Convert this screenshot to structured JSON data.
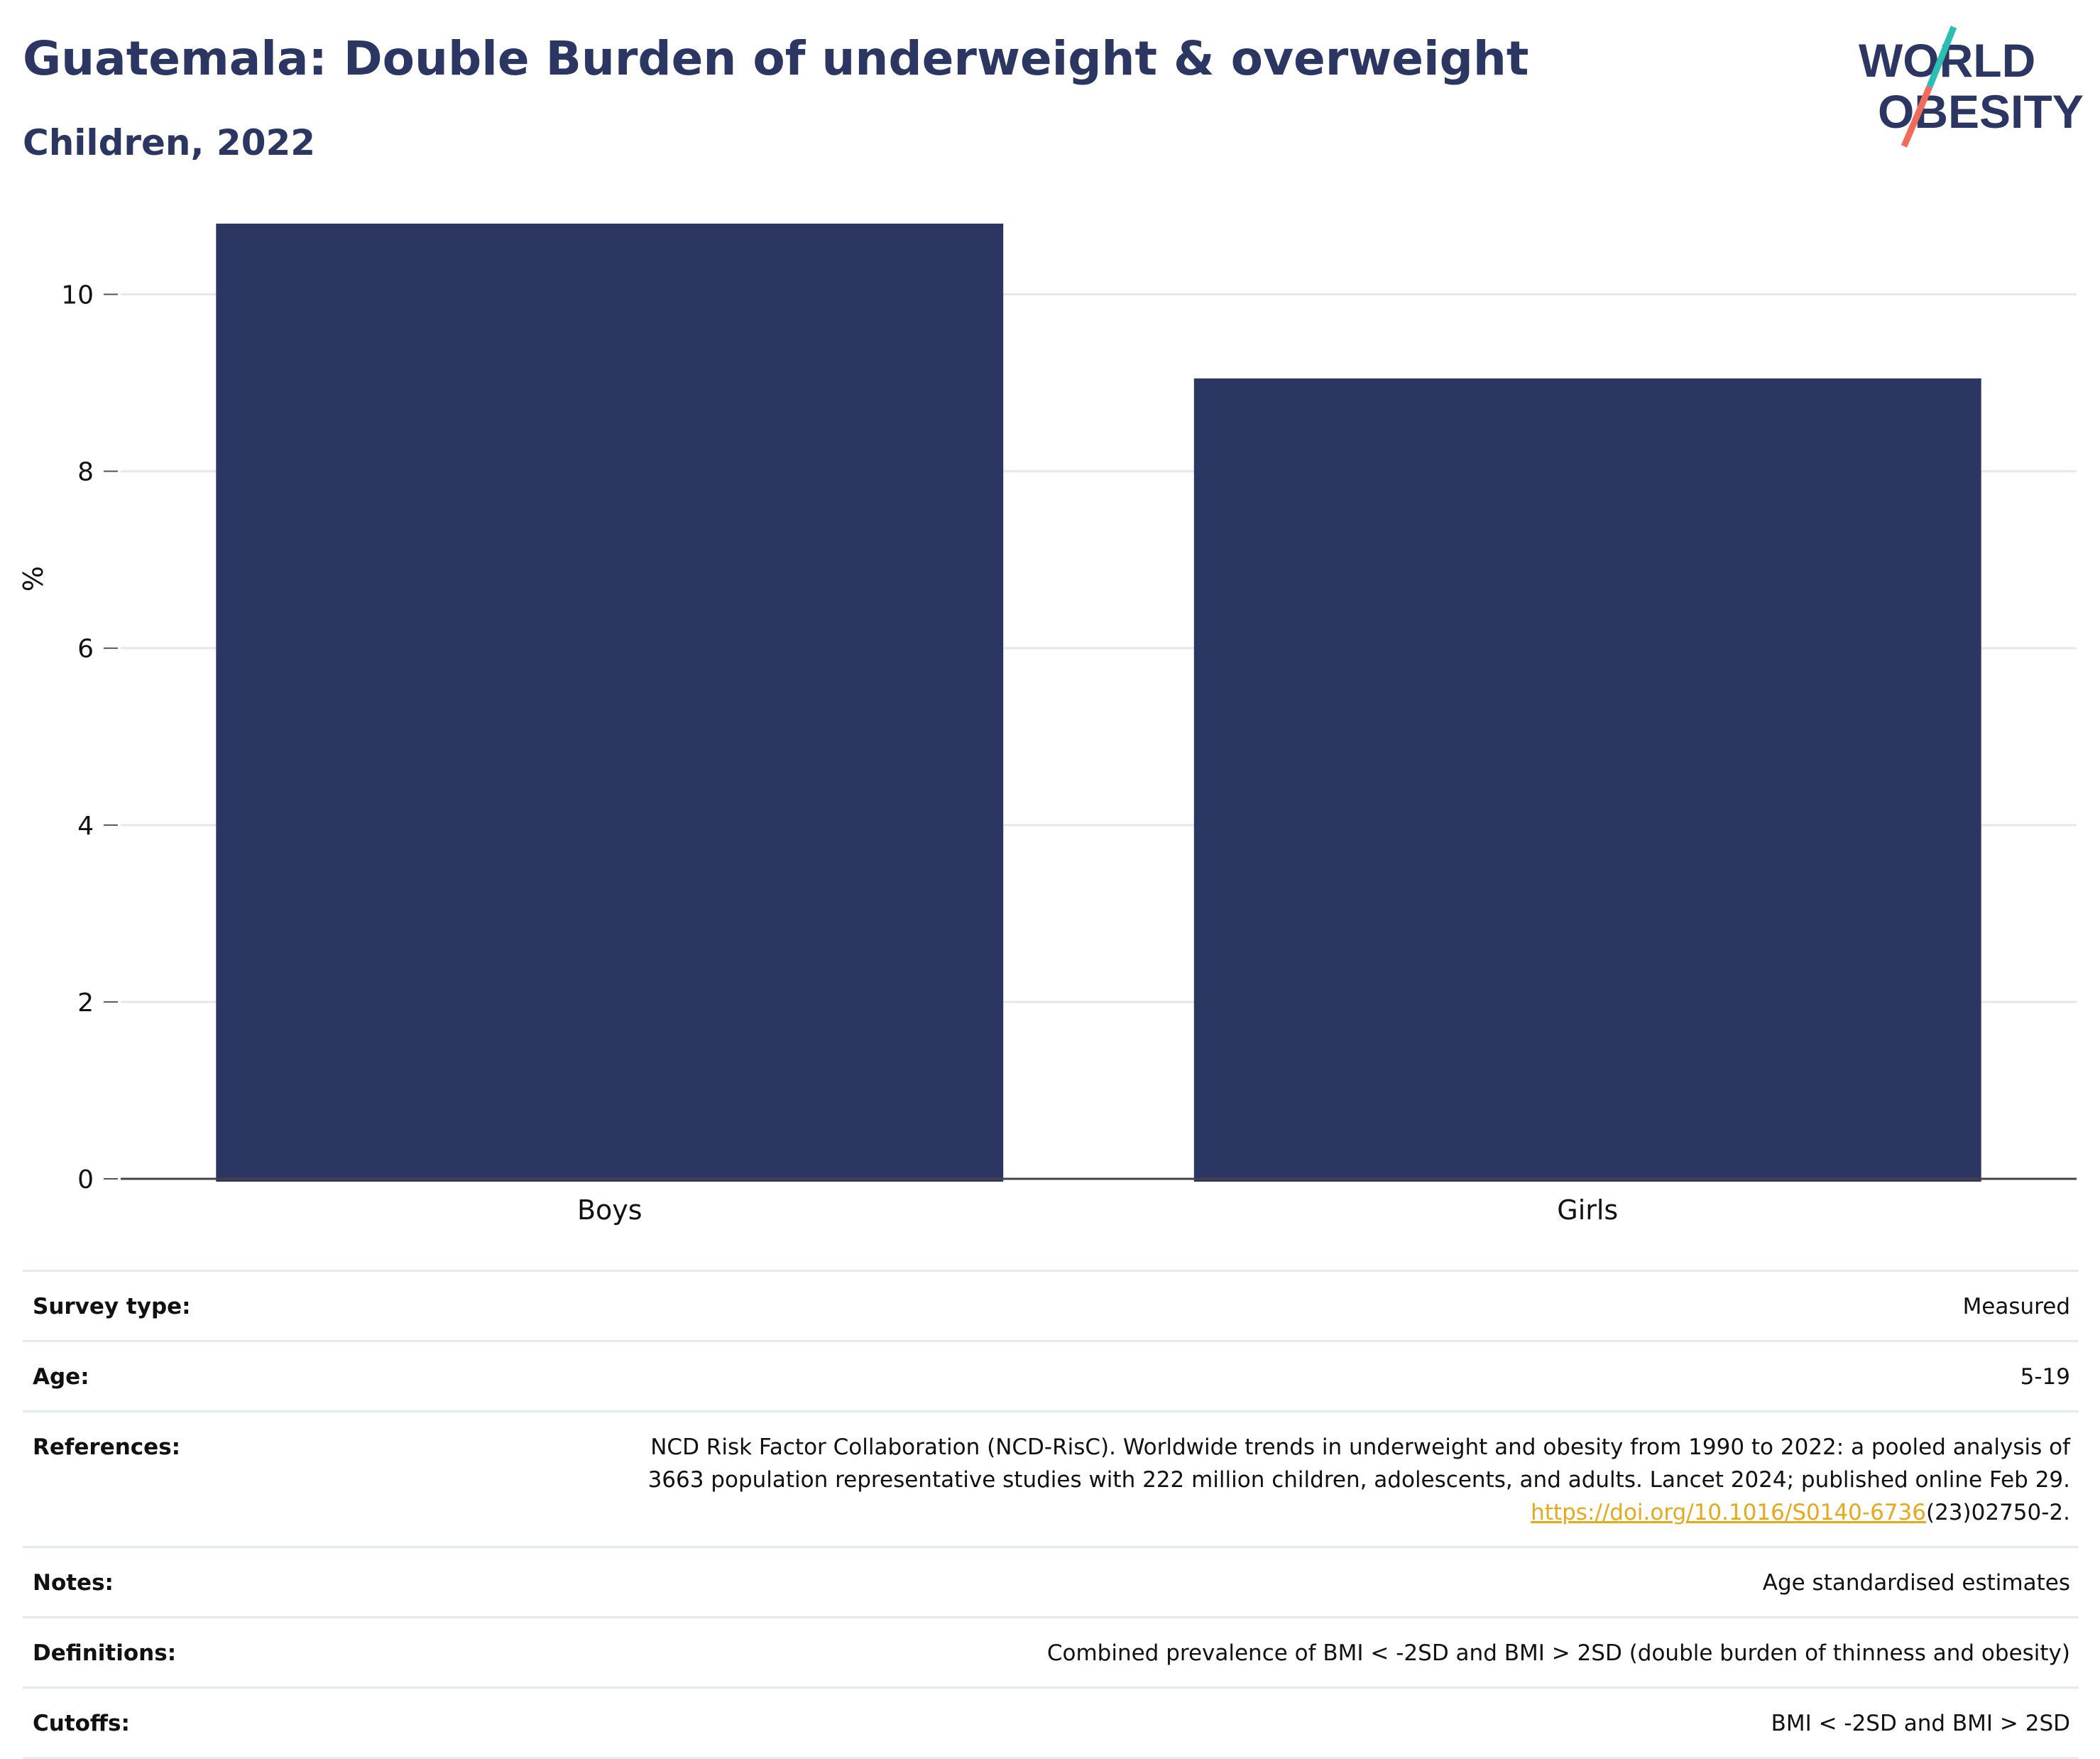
{
  "header": {
    "title": "Guatemala: Double Burden of underweight & overweight",
    "subtitle": "Children, 2022"
  },
  "logo": {
    "line1": "WORLD",
    "line2": "OBESITY",
    "accent_teal": "#2bbfb3",
    "accent_coral": "#f06b5a"
  },
  "chart_data": {
    "type": "bar",
    "categories": [
      "Boys",
      "Girls"
    ],
    "values": [
      10.8,
      9.05
    ],
    "title": "Guatemala: Double Burden of underweight & overweight",
    "subtitle": "Children, 2022",
    "xlabel": "",
    "ylabel": "%",
    "ylim": [
      0,
      11
    ],
    "yticks": [
      0,
      2,
      4,
      6,
      8,
      10
    ],
    "grid": true,
    "bar_color": "#2b3663"
  },
  "meta": {
    "survey_type": {
      "label": "Survey type:",
      "value": "Measured"
    },
    "age": {
      "label": "Age:",
      "value": "5-19"
    },
    "references": {
      "label": "References:",
      "line1": "NCD Risk Factor Collaboration (NCD-RisC). Worldwide trends in underweight and obesity from 1990 to 2022: a pooled analysis of",
      "line2": "3663 population representative studies with 222 million children, adolescents, and adults. Lancet 2024; published online Feb 29.",
      "link": "https://doi.org/10.1016/S0140-6736",
      "link_suffix": "(23)02750-2."
    },
    "notes": {
      "label": "Notes:",
      "value": "Age standardised estimates"
    },
    "definitions": {
      "label": "Definitions:",
      "value": "Combined prevalence of BMI < -2SD and BMI > 2SD (double burden of thinness and obesity)"
    },
    "cutoffs": {
      "label": "Cutoffs:",
      "value": "BMI < -2SD and BMI > 2SD"
    }
  }
}
